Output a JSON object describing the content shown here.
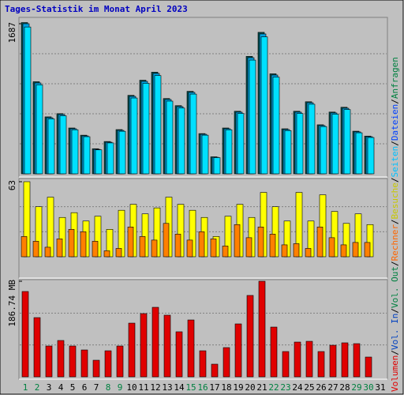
{
  "title": "Tages-Statistik im Monat April 2023",
  "categories": [
    "1",
    "2",
    "3",
    "4",
    "5",
    "6",
    "7",
    "8",
    "9",
    "10",
    "11",
    "12",
    "13",
    "14",
    "15",
    "16",
    "17",
    "18",
    "19",
    "20",
    "21",
    "22",
    "23",
    "24",
    "25",
    "26",
    "27",
    "28",
    "29",
    "30",
    "31"
  ],
  "category_colors": [
    "#008040",
    "#008040",
    "#000000",
    "#000000",
    "#000000",
    "#000000",
    "#000000",
    "#008040",
    "#008040",
    "#000000",
    "#000000",
    "#000000",
    "#000000",
    "#000000",
    "#008040",
    "#008040",
    "#000000",
    "#000000",
    "#000000",
    "#000000",
    "#000000",
    "#008040",
    "#008040",
    "#000000",
    "#000000",
    "#000000",
    "#000000",
    "#000000",
    "#008040",
    "#008040",
    "#000000"
  ],
  "side_legend": {
    "separator": "/",
    "entries": [
      {
        "name": "Volumen",
        "color": "#e00000"
      },
      {
        "name": "Vol. In",
        "color": "#0040c0"
      },
      {
        "name": "Vol. Out",
        "color": "#008040"
      },
      {
        "name": "Rechner",
        "color": "#ff6600"
      },
      {
        "name": "Besuche",
        "color": "#c8c800"
      },
      {
        "name": "Seiten",
        "color": "#00c0ff"
      },
      {
        "name": "Dateien",
        "color": "#0040ff"
      },
      {
        "name": "Anfragen",
        "color": "#008040"
      }
    ]
  },
  "chart_data": [
    {
      "type": "bar",
      "ylim": [
        0,
        1687
      ],
      "yticks": [
        1687
      ],
      "grid_divisions": 5,
      "series": [
        {
          "name": "Anfragen",
          "color": "#005050",
          "values": [
            1700,
            1035,
            640,
            676,
            515,
            434,
            282,
            363,
            497,
            882,
            1052,
            1142,
            846,
            766,
            927,
            452,
            191,
            515,
            703,
            1320,
            1590,
            1124,
            506,
            703,
            810,
            551,
            694,
            748,
            479,
            424,
            0
          ]
        },
        {
          "name": "Dateien",
          "color": "#00a0e0",
          "values": [
            1687,
            1021,
            630,
            666,
            506,
            426,
            275,
            355,
            488,
            870,
            1039,
            1128,
            835,
            755,
            915,
            444,
            186,
            506,
            693,
            1305,
            1572,
            1110,
            497,
            693,
            799,
            542,
            684,
            737,
            471,
            417,
            0
          ]
        },
        {
          "name": "Seiten",
          "color": "#00e0ff",
          "values": [
            1650,
            1000,
            617,
            652,
            495,
            417,
            269,
            347,
            478,
            852,
            1017,
            1104,
            817,
            739,
            896,
            434,
            182,
            495,
            678,
            1278,
            1539,
            1087,
            486,
            678,
            782,
            531,
            670,
            722,
            461,
            408,
            0
          ]
        }
      ]
    },
    {
      "type": "bar",
      "ylim": [
        0,
        63
      ],
      "yticks": [
        63
      ],
      "grid_divisions": 3,
      "series": [
        {
          "name": "Besuche",
          "color": "#ffff00",
          "values": [
            63,
            42,
            50,
            33,
            37,
            30,
            34,
            23,
            39,
            44,
            36,
            41,
            50,
            44,
            39,
            33,
            17,
            34,
            44,
            33,
            54,
            42,
            30,
            54,
            30,
            52,
            38,
            28,
            36,
            27,
            0
          ]
        },
        {
          "name": "Rechner",
          "color": "#ff8000",
          "values": [
            17,
            13,
            8,
            15,
            23,
            21,
            13,
            5,
            7,
            25,
            17,
            14,
            28,
            19,
            14,
            21,
            15,
            9,
            27,
            16,
            25,
            19,
            10,
            11,
            7,
            25,
            16,
            10,
            12,
            12,
            0
          ]
        }
      ]
    },
    {
      "type": "bar",
      "ylim": [
        0,
        186.74
      ],
      "yticks": [
        {
          "value": 186.74,
          "label": "186.74 MB"
        }
      ],
      "grid_divisions": 3,
      "series": [
        {
          "name": "Volumen",
          "color": "#e00000",
          "values": [
            166.7,
            115.7,
            60.2,
            71.0,
            60.2,
            52.5,
            32.4,
            50.9,
            60.2,
            104.9,
            123.5,
            135.8,
            120.4,
            88.0,
            111.1,
            50.9,
            24.7,
            57.1,
            103.4,
            159.0,
            186.74,
            97.2,
            49.4,
            67.9,
            69.4,
            49.4,
            61.7,
            66.4,
            64.8,
            38.6,
            0
          ]
        }
      ]
    }
  ]
}
